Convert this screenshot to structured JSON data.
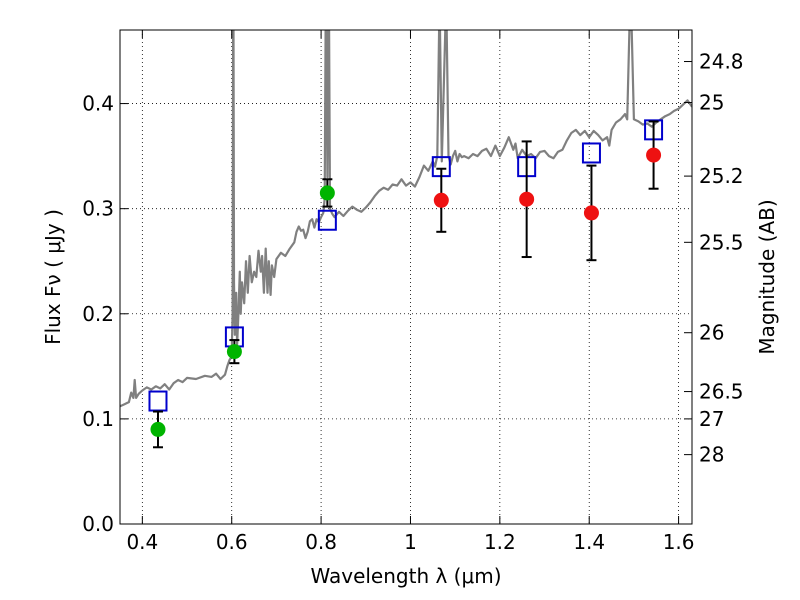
{
  "chart_data": {
    "type": "scatter",
    "xlabel": "Wavelength  λ (μm)",
    "ylabel": "Flux  Fν  ( μJy )",
    "ylabel_right": "Magnitude (AB)",
    "xlim": [
      0.35,
      1.63
    ],
    "ylim": [
      0.0,
      0.47
    ],
    "grid": true,
    "x_ticks": [
      {
        "value": 0.4,
        "label": "0.4"
      },
      {
        "value": 0.6,
        "label": "0.6"
      },
      {
        "value": 0.8,
        "label": "0.8"
      },
      {
        "value": 1.0,
        "label": "1"
      },
      {
        "value": 1.2,
        "label": "1.2"
      },
      {
        "value": 1.4,
        "label": "1.4"
      },
      {
        "value": 1.6,
        "label": "1.6"
      }
    ],
    "y_ticks": [
      {
        "value": 0.0,
        "label": "0.0"
      },
      {
        "value": 0.1,
        "label": "0.1"
      },
      {
        "value": 0.2,
        "label": "0.2"
      },
      {
        "value": 0.3,
        "label": "0.3"
      },
      {
        "value": 0.4,
        "label": "0.4"
      }
    ],
    "mag_ticks": [
      {
        "flux": 0.066,
        "label": "28"
      },
      {
        "flux": 0.1,
        "label": "27"
      },
      {
        "flux": 0.126,
        "label": "26.5"
      },
      {
        "flux": 0.182,
        "label": "26"
      },
      {
        "flux": 0.268,
        "label": "25.5"
      },
      {
        "flux": 0.331,
        "label": "25.2"
      },
      {
        "flux": 0.401,
        "label": "25"
      },
      {
        "flux": 0.44,
        "label": "24.8"
      }
    ],
    "spectrum_color": "#808080",
    "model_color": "#0000cc",
    "green_color": "#00b400",
    "red_color": "#ee1111",
    "spectrum": [
      [
        0.35,
        0.112
      ],
      [
        0.36,
        0.114
      ],
      [
        0.37,
        0.116
      ],
      [
        0.375,
        0.125
      ],
      [
        0.38,
        0.12
      ],
      [
        0.383,
        0.137
      ],
      [
        0.386,
        0.12
      ],
      [
        0.392,
        0.124
      ],
      [
        0.4,
        0.127
      ],
      [
        0.41,
        0.13
      ],
      [
        0.42,
        0.128
      ],
      [
        0.43,
        0.131
      ],
      [
        0.44,
        0.129
      ],
      [
        0.45,
        0.133
      ],
      [
        0.46,
        0.128
      ],
      [
        0.47,
        0.134
      ],
      [
        0.48,
        0.137
      ],
      [
        0.49,
        0.135
      ],
      [
        0.5,
        0.139
      ],
      [
        0.52,
        0.138
      ],
      [
        0.54,
        0.141
      ],
      [
        0.555,
        0.14
      ],
      [
        0.565,
        0.143
      ],
      [
        0.575,
        0.138
      ],
      [
        0.585,
        0.142
      ],
      [
        0.59,
        0.15
      ],
      [
        0.595,
        0.156
      ],
      [
        0.598,
        0.158
      ],
      [
        0.6,
        0.162
      ],
      [
        0.602,
        0.2
      ],
      [
        0.603,
        0.47
      ],
      [
        0.604,
        0.47
      ],
      [
        0.605,
        0.23
      ],
      [
        0.607,
        0.18
      ],
      [
        0.61,
        0.22
      ],
      [
        0.612,
        0.17
      ],
      [
        0.615,
        0.2
      ],
      [
        0.618,
        0.24
      ],
      [
        0.62,
        0.2
      ],
      [
        0.623,
        0.23
      ],
      [
        0.628,
        0.21
      ],
      [
        0.632,
        0.25
      ],
      [
        0.636,
        0.22
      ],
      [
        0.64,
        0.255
      ],
      [
        0.645,
        0.23
      ],
      [
        0.65,
        0.24
      ],
      [
        0.655,
        0.235
      ],
      [
        0.66,
        0.26
      ],
      [
        0.665,
        0.24
      ],
      [
        0.668,
        0.255
      ],
      [
        0.672,
        0.22
      ],
      [
        0.676,
        0.262
      ],
      [
        0.68,
        0.22
      ],
      [
        0.683,
        0.25
      ],
      [
        0.687,
        0.218
      ],
      [
        0.69,
        0.246
      ],
      [
        0.695,
        0.235
      ],
      [
        0.7,
        0.252
      ],
      [
        0.71,
        0.258
      ],
      [
        0.72,
        0.255
      ],
      [
        0.73,
        0.262
      ],
      [
        0.74,
        0.268
      ],
      [
        0.745,
        0.278
      ],
      [
        0.75,
        0.283
      ],
      [
        0.755,
        0.279
      ],
      [
        0.76,
        0.28
      ],
      [
        0.765,
        0.272
      ],
      [
        0.77,
        0.278
      ],
      [
        0.775,
        0.288
      ],
      [
        0.78,
        0.29
      ],
      [
        0.785,
        0.282
      ],
      [
        0.79,
        0.29
      ],
      [
        0.795,
        0.287
      ],
      [
        0.8,
        0.292
      ],
      [
        0.805,
        0.296
      ],
      [
        0.808,
        0.31
      ],
      [
        0.81,
        0.47
      ],
      [
        0.812,
        0.47
      ],
      [
        0.814,
        0.33
      ],
      [
        0.816,
        0.47
      ],
      [
        0.818,
        0.47
      ],
      [
        0.82,
        0.3
      ],
      [
        0.825,
        0.295
      ],
      [
        0.83,
        0.292
      ],
      [
        0.84,
        0.297
      ],
      [
        0.85,
        0.293
      ],
      [
        0.86,
        0.298
      ],
      [
        0.87,
        0.302
      ],
      [
        0.88,
        0.299
      ],
      [
        0.89,
        0.297
      ],
      [
        0.9,
        0.301
      ],
      [
        0.91,
        0.306
      ],
      [
        0.92,
        0.312
      ],
      [
        0.93,
        0.317
      ],
      [
        0.94,
        0.32
      ],
      [
        0.95,
        0.318
      ],
      [
        0.96,
        0.323
      ],
      [
        0.97,
        0.322
      ],
      [
        0.98,
        0.328
      ],
      [
        0.99,
        0.322
      ],
      [
        1.0,
        0.325
      ],
      [
        1.01,
        0.321
      ],
      [
        1.02,
        0.33
      ],
      [
        1.03,
        0.341
      ],
      [
        1.04,
        0.336
      ],
      [
        1.05,
        0.345
      ],
      [
        1.055,
        0.34
      ],
      [
        1.06,
        0.35
      ],
      [
        1.064,
        0.47
      ],
      [
        1.066,
        0.47
      ],
      [
        1.07,
        0.345
      ],
      [
        1.078,
        0.47
      ],
      [
        1.081,
        0.47
      ],
      [
        1.085,
        0.35
      ],
      [
        1.09,
        0.342
      ],
      [
        1.095,
        0.35
      ],
      [
        1.1,
        0.355
      ],
      [
        1.105,
        0.345
      ],
      [
        1.11,
        0.352
      ],
      [
        1.115,
        0.349
      ],
      [
        1.12,
        0.35
      ],
      [
        1.13,
        0.348
      ],
      [
        1.14,
        0.352
      ],
      [
        1.15,
        0.35
      ],
      [
        1.16,
        0.355
      ],
      [
        1.17,
        0.357
      ],
      [
        1.18,
        0.35
      ],
      [
        1.19,
        0.36
      ],
      [
        1.2,
        0.35
      ],
      [
        1.21,
        0.358
      ],
      [
        1.22,
        0.368
      ],
      [
        1.23,
        0.356
      ],
      [
        1.235,
        0.362
      ],
      [
        1.24,
        0.348
      ],
      [
        1.25,
        0.356
      ],
      [
        1.26,
        0.35
      ],
      [
        1.27,
        0.352
      ],
      [
        1.28,
        0.348
      ],
      [
        1.29,
        0.354
      ],
      [
        1.3,
        0.355
      ],
      [
        1.31,
        0.35
      ],
      [
        1.32,
        0.348
      ],
      [
        1.33,
        0.354
      ],
      [
        1.34,
        0.356
      ],
      [
        1.35,
        0.365
      ],
      [
        1.36,
        0.372
      ],
      [
        1.37,
        0.375
      ],
      [
        1.38,
        0.37
      ],
      [
        1.39,
        0.374
      ],
      [
        1.4,
        0.368
      ],
      [
        1.41,
        0.374
      ],
      [
        1.42,
        0.37
      ],
      [
        1.43,
        0.365
      ],
      [
        1.44,
        0.368
      ],
      [
        1.445,
        0.36
      ],
      [
        1.45,
        0.375
      ],
      [
        1.46,
        0.382
      ],
      [
        1.47,
        0.385
      ],
      [
        1.48,
        0.39
      ],
      [
        1.485,
        0.385
      ],
      [
        1.49,
        0.47
      ],
      [
        1.495,
        0.47
      ],
      [
        1.5,
        0.385
      ],
      [
        1.51,
        0.383
      ],
      [
        1.52,
        0.38
      ],
      [
        1.53,
        0.381
      ],
      [
        1.54,
        0.378
      ],
      [
        1.55,
        0.382
      ],
      [
        1.56,
        0.385
      ],
      [
        1.57,
        0.388
      ],
      [
        1.58,
        0.39
      ],
      [
        1.59,
        0.393
      ],
      [
        1.6,
        0.395
      ],
      [
        1.61,
        0.399
      ],
      [
        1.62,
        0.403
      ],
      [
        1.63,
        0.397
      ]
    ],
    "model_points": [
      {
        "x": 0.435,
        "y": 0.117
      },
      {
        "x": 0.606,
        "y": 0.178
      },
      {
        "x": 0.814,
        "y": 0.289
      },
      {
        "x": 1.069,
        "y": 0.34
      },
      {
        "x": 1.26,
        "y": 0.34
      },
      {
        "x": 1.405,
        "y": 0.353
      },
      {
        "x": 1.544,
        "y": 0.375
      }
    ],
    "green_points": [
      {
        "x": 0.435,
        "y": 0.09,
        "err": 0.017
      },
      {
        "x": 0.606,
        "y": 0.164,
        "err": 0.011
      },
      {
        "x": 0.814,
        "y": 0.315,
        "err": 0.013
      }
    ],
    "red_points": [
      {
        "x": 1.069,
        "y": 0.308,
        "err": 0.03
      },
      {
        "x": 1.26,
        "y": 0.309,
        "err": 0.055
      },
      {
        "x": 1.405,
        "y": 0.296,
        "err": 0.045
      },
      {
        "x": 1.544,
        "y": 0.351,
        "err": 0.032
      }
    ]
  }
}
